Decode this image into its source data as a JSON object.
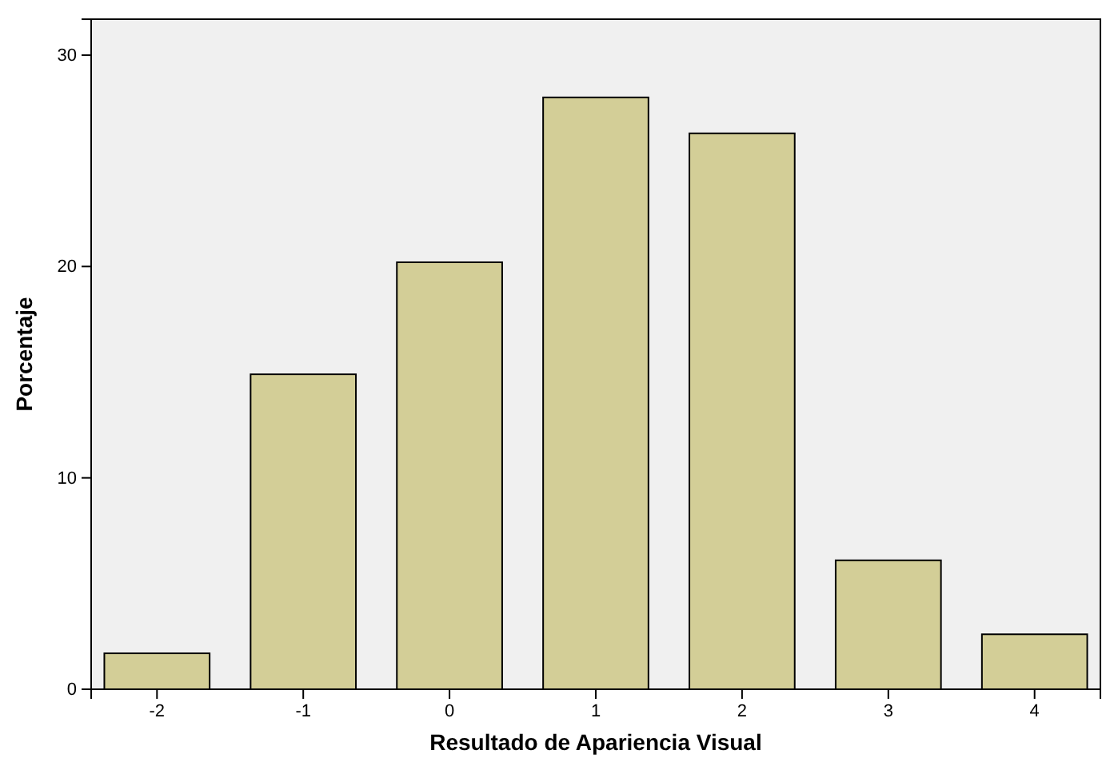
{
  "chart_data": {
    "type": "bar",
    "xlabel": "Resultado de Apariencia Visual",
    "ylabel": "Porcentaje",
    "categories": [
      "-2",
      "-1",
      "0",
      "1",
      "2",
      "3",
      "4"
    ],
    "values": [
      1.7,
      14.9,
      20.2,
      28.0,
      26.3,
      6.1,
      2.6
    ],
    "color": "#d3ce97",
    "ylim": [
      0,
      31.7
    ],
    "yticks": [
      0,
      10,
      20,
      30
    ],
    "grid": false
  }
}
